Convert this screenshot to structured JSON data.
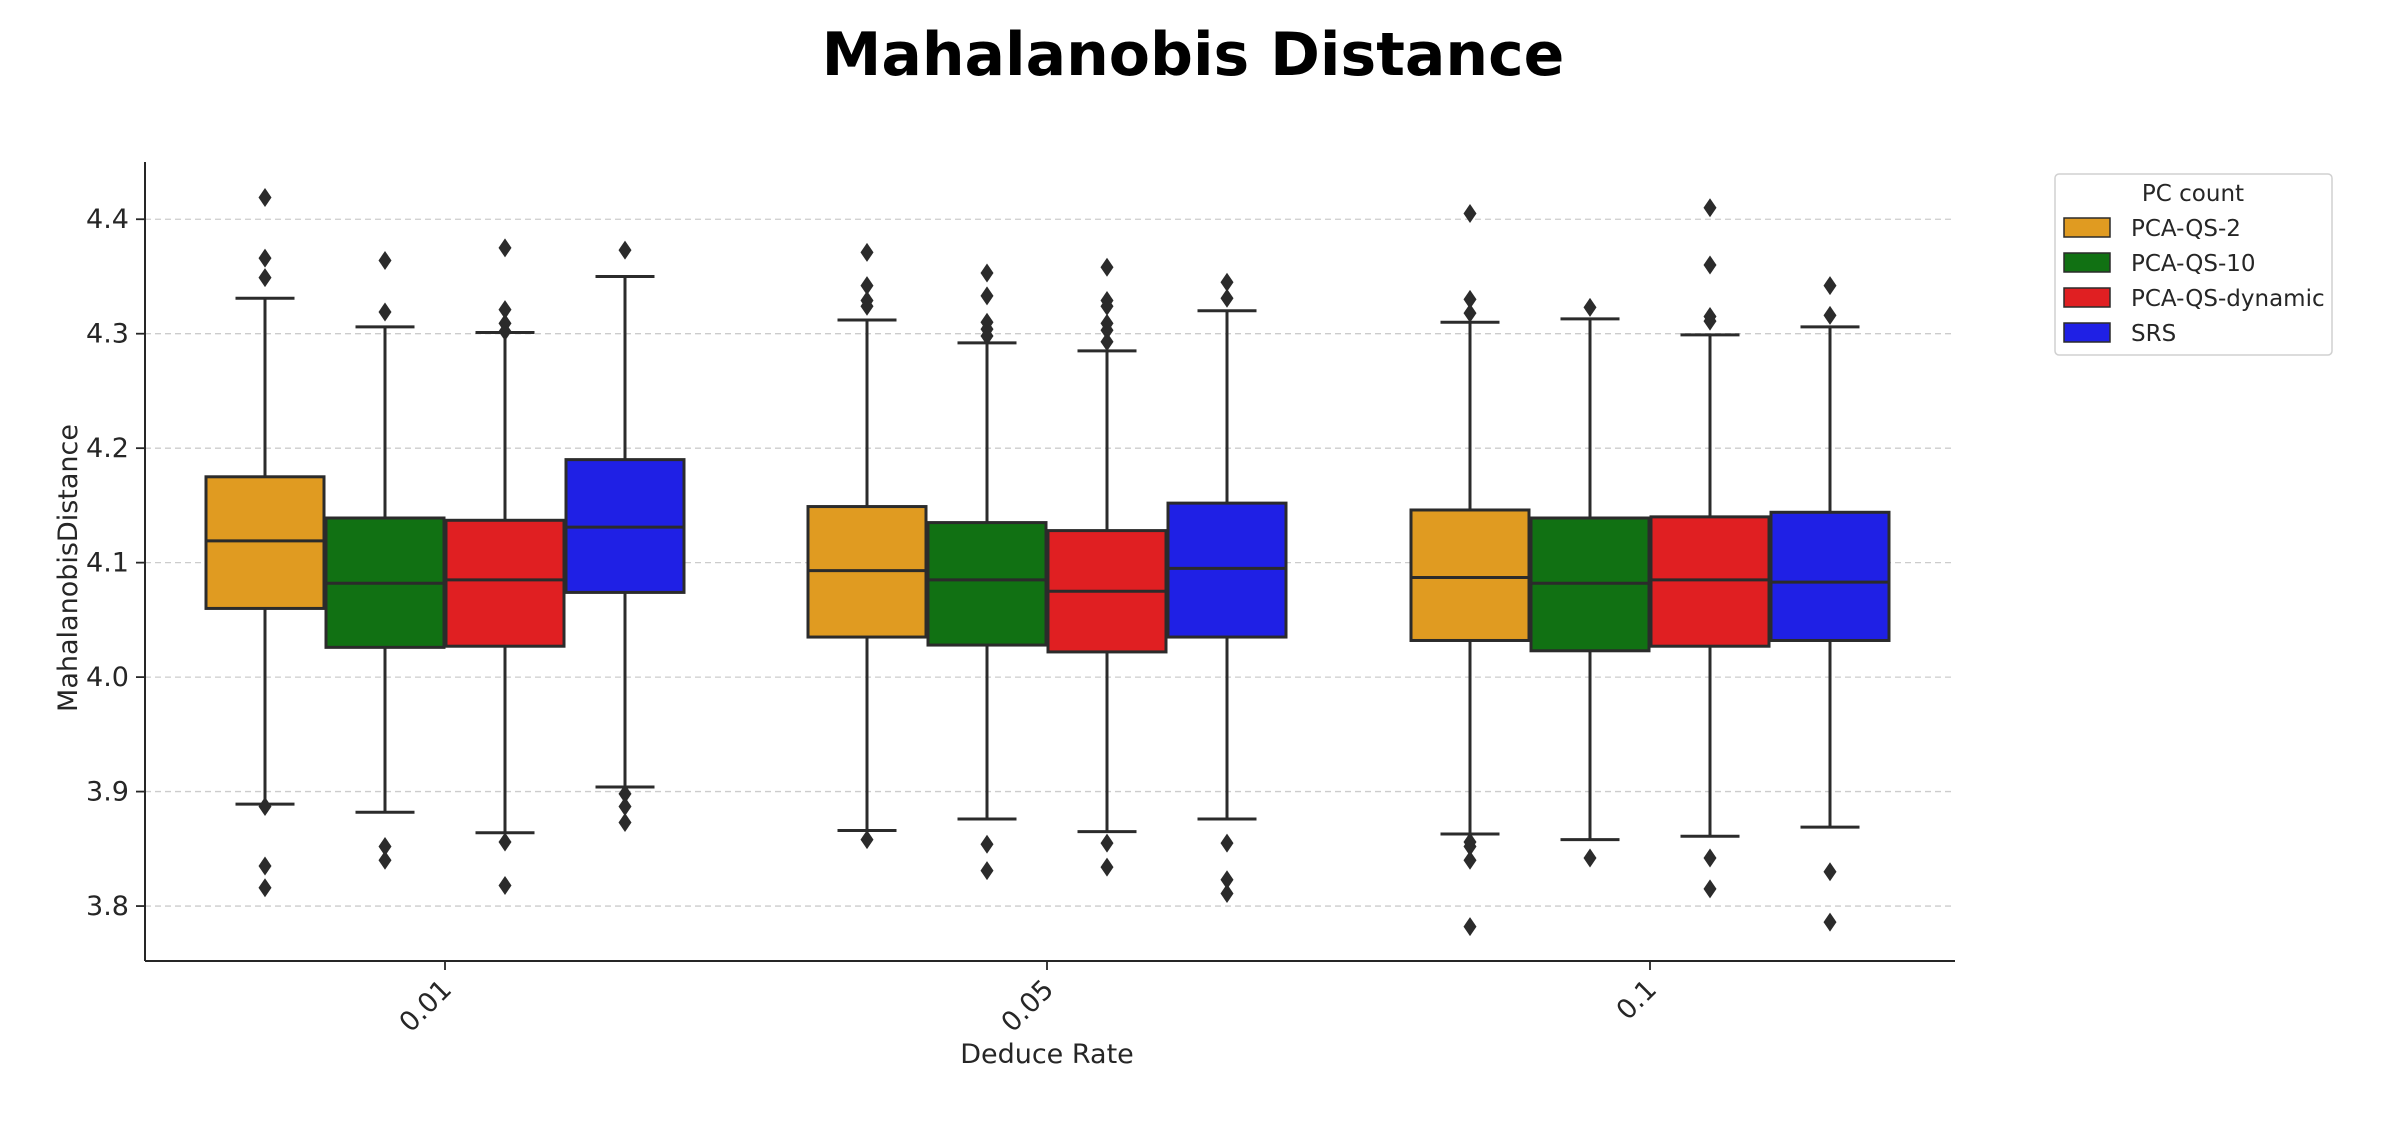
{
  "chart_data": {
    "type": "boxplot",
    "title": "Mahalanobis Distance",
    "xlabel": "Deduce Rate",
    "ylabel": "MahalanobisDistance",
    "ylim": [
      3.752,
      4.45
    ],
    "yticks": [
      "3.8",
      "3.9",
      "4.0",
      "4.1",
      "4.2",
      "4.3",
      "4.4"
    ],
    "grid": "y-dashed",
    "categories": [
      "0.01",
      "0.05",
      "0.1"
    ],
    "legend": {
      "title": "PC count",
      "position": "upper-right-outside"
    },
    "series": [
      {
        "name": "PCA-QS-2",
        "color": "#e09b21",
        "boxes": [
          {
            "q1": 4.06,
            "median": 4.119,
            "q3": 4.175,
            "whisker_low": 3.889,
            "whisker_high": 4.331,
            "outliers": [
              4.419,
              4.366,
              4.349,
              3.887,
              3.835,
              3.816
            ]
          },
          {
            "q1": 4.035,
            "median": 4.093,
            "q3": 4.149,
            "whisker_low": 3.866,
            "whisker_high": 4.312,
            "outliers": [
              4.371,
              4.342,
              4.329,
              4.324,
              3.858
            ]
          },
          {
            "q1": 4.032,
            "median": 4.087,
            "q3": 4.146,
            "whisker_low": 3.863,
            "whisker_high": 4.31,
            "outliers": [
              4.405,
              4.33,
              4.318,
              3.856,
              3.852,
              3.84,
              3.782
            ]
          }
        ]
      },
      {
        "name": "PCA-QS-10",
        "color": "#117113",
        "boxes": [
          {
            "q1": 4.026,
            "median": 4.082,
            "q3": 4.139,
            "whisker_low": 3.882,
            "whisker_high": 4.306,
            "outliers": [
              4.364,
              4.319,
              3.852,
              3.84
            ]
          },
          {
            "q1": 4.028,
            "median": 4.085,
            "q3": 4.135,
            "whisker_low": 3.876,
            "whisker_high": 4.292,
            "outliers": [
              4.353,
              4.333,
              4.31,
              4.304,
              4.298,
              3.854,
              3.831
            ]
          },
          {
            "q1": 4.023,
            "median": 4.082,
            "q3": 4.139,
            "whisker_low": 3.858,
            "whisker_high": 4.313,
            "outliers": [
              4.323,
              3.842
            ]
          }
        ]
      },
      {
        "name": "PCA-QS-dynamic",
        "color": "#e01f22",
        "boxes": [
          {
            "q1": 4.027,
            "median": 4.085,
            "q3": 4.137,
            "whisker_low": 3.864,
            "whisker_high": 4.301,
            "outliers": [
              4.375,
              4.321,
              4.309,
              4.302,
              3.856,
              3.818
            ]
          },
          {
            "q1": 4.022,
            "median": 4.075,
            "q3": 4.128,
            "whisker_low": 3.865,
            "whisker_high": 4.285,
            "outliers": [
              4.358,
              4.329,
              4.324,
              4.309,
              4.303,
              4.293,
              3.855,
              3.834
            ]
          },
          {
            "q1": 4.027,
            "median": 4.085,
            "q3": 4.14,
            "whisker_low": 3.861,
            "whisker_high": 4.299,
            "outliers": [
              4.41,
              4.36,
              4.315,
              4.311,
              3.842,
              3.815
            ]
          }
        ]
      },
      {
        "name": "SRS",
        "color": "#1f20e5",
        "boxes": [
          {
            "q1": 4.074,
            "median": 4.131,
            "q3": 4.19,
            "whisker_low": 3.904,
            "whisker_high": 4.35,
            "outliers": [
              4.373,
              3.898,
              3.887,
              3.873
            ]
          },
          {
            "q1": 4.035,
            "median": 4.095,
            "q3": 4.152,
            "whisker_low": 3.876,
            "whisker_high": 4.32,
            "outliers": [
              4.345,
              4.331,
              3.855,
              3.823,
              3.811
            ]
          },
          {
            "q1": 4.032,
            "median": 4.083,
            "q3": 4.144,
            "whisker_low": 3.869,
            "whisker_high": 4.306,
            "outliers": [
              4.342,
              4.316,
              3.83,
              3.786
            ]
          }
        ]
      }
    ]
  }
}
